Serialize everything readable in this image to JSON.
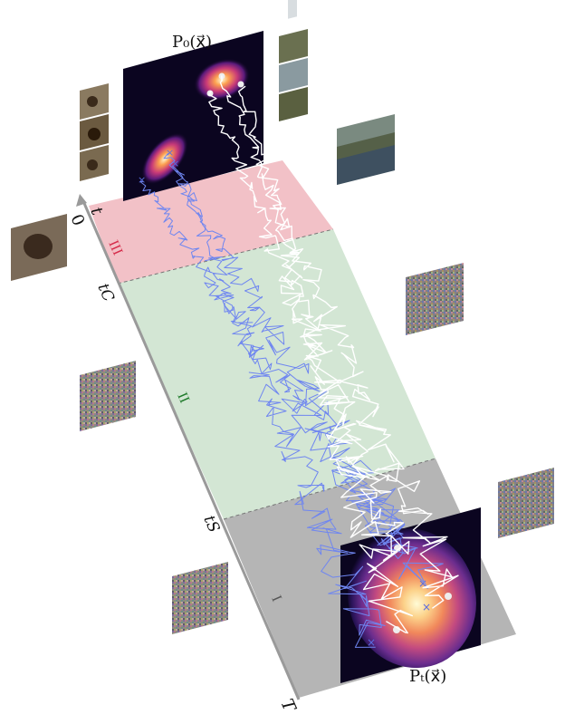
{
  "diagram": {
    "title_top": "P₀(x⃗)",
    "title_bottom": "Pₜ(x⃗)",
    "axis": {
      "variable": "t",
      "start": "0",
      "tc": "tC",
      "ts": "tS",
      "end": "T"
    },
    "regimes": [
      {
        "numeral": "III",
        "color": "#d62b4a",
        "band_color": "#f2c1c7"
      },
      {
        "numeral": "II",
        "color": "#1e7a2a",
        "band_color": "#d3e6d4"
      },
      {
        "numeral": "I",
        "color": "#666666",
        "band_color": "#b5b5b5"
      }
    ],
    "trajectory_colors": {
      "blue": "#6f86f0",
      "white": "#ffffff"
    },
    "image_tiles": [
      "bear-photo-tiles",
      "waterfall-photo-tiles",
      "lake-photo",
      "bear-noisy-photo",
      "noise-tile-1",
      "noise-tile-2",
      "noise-tile-3",
      "noise-tile-4",
      "noise-tile-5"
    ]
  }
}
